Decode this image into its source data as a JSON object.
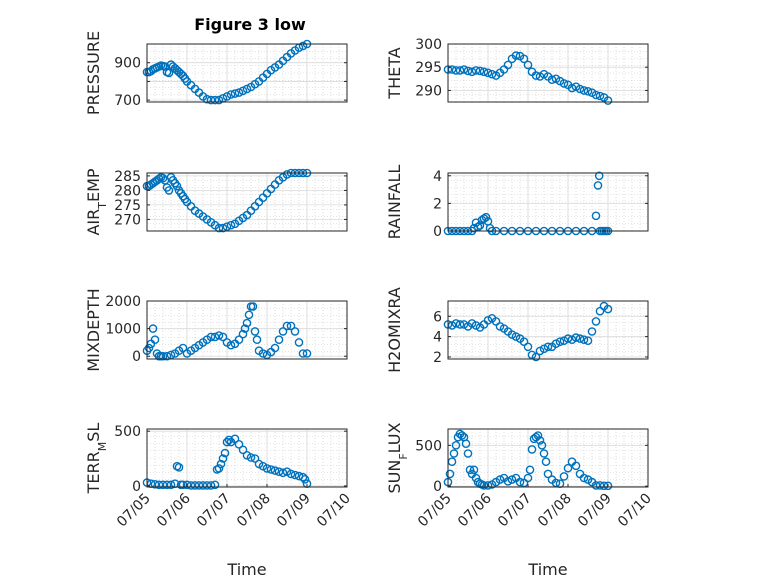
{
  "figure": {
    "title": "Figure 3 low"
  },
  "chart_data": [
    {
      "type": "scatter",
      "title": "Figure 3 low",
      "ylabel": "PRESSURE",
      "xlabel": "",
      "xlim": [
        0,
        5
      ],
      "ylim": [
        690,
        1000
      ],
      "xticks": [],
      "xtick_labels": [],
      "yticks": [
        700,
        800,
        900
      ],
      "ytick_labels": [
        "700",
        "",
        "900"
      ],
      "grid": true,
      "marker_color": "#0072BD",
      "x": [
        0.0,
        0.05,
        0.1,
        0.15,
        0.2,
        0.25,
        0.3,
        0.35,
        0.4,
        0.45,
        0.5,
        0.55,
        0.6,
        0.65,
        0.7,
        0.75,
        0.8,
        0.85,
        0.9,
        0.95,
        1.0,
        1.1,
        1.2,
        1.3,
        1.4,
        1.5,
        1.6,
        1.7,
        1.8,
        1.9,
        2.0,
        2.1,
        2.2,
        2.3,
        2.4,
        2.5,
        2.6,
        2.7,
        2.8,
        2.9,
        3.0,
        3.1,
        3.2,
        3.3,
        3.4,
        3.5,
        3.6,
        3.7,
        3.8,
        3.9,
        4.0
      ],
      "y": [
        850,
        850,
        855,
        865,
        870,
        875,
        880,
        885,
        882,
        880,
        850,
        845,
        890,
        880,
        870,
        860,
        850,
        840,
        830,
        815,
        800,
        780,
        760,
        740,
        720,
        705,
        700,
        700,
        700,
        710,
        720,
        730,
        735,
        740,
        750,
        760,
        770,
        785,
        800,
        820,
        840,
        860,
        875,
        890,
        910,
        930,
        950,
        965,
        980,
        990,
        1000
      ]
    },
    {
      "type": "scatter",
      "title": "",
      "ylabel": "THETA",
      "xlabel": "",
      "xlim": [
        0,
        5
      ],
      "ylim": [
        287.5,
        300
      ],
      "xticks": [],
      "xtick_labels": [],
      "yticks": [
        290,
        295,
        300
      ],
      "ytick_labels": [
        "290",
        "295",
        "300"
      ],
      "grid": true,
      "marker_color": "#0072BD",
      "x": [
        0.0,
        0.1,
        0.2,
        0.3,
        0.4,
        0.5,
        0.6,
        0.7,
        0.8,
        0.9,
        1.0,
        1.1,
        1.2,
        1.3,
        1.4,
        1.5,
        1.6,
        1.7,
        1.8,
        1.9,
        2.0,
        2.1,
        2.2,
        2.3,
        2.4,
        2.5,
        2.6,
        2.7,
        2.8,
        2.9,
        3.0,
        3.1,
        3.2,
        3.3,
        3.4,
        3.5,
        3.6,
        3.7,
        3.8,
        3.9,
        4.0
      ],
      "y": [
        294.5,
        294.5,
        294.3,
        294.3,
        294.5,
        294.2,
        294.0,
        294.3,
        294.2,
        294.0,
        293.8,
        293.5,
        293.2,
        293.8,
        294.5,
        295.5,
        296.8,
        297.5,
        297.4,
        296.8,
        295.5,
        294.0,
        293.2,
        293.0,
        293.5,
        293.0,
        292.3,
        292.5,
        292.0,
        291.5,
        291.2,
        290.5,
        290.8,
        290.3,
        290.0,
        289.8,
        289.5,
        289.0,
        288.8,
        288.5,
        287.8
      ]
    },
    {
      "type": "scatter",
      "title": "",
      "ylabel": "AIR_TEMP",
      "xlabel": "",
      "xlim": [
        0,
        5
      ],
      "ylim": [
        266,
        286
      ],
      "xticks": [],
      "xtick_labels": [],
      "yticks": [
        270,
        275,
        280,
        285
      ],
      "ytick_labels": [
        "270",
        "275",
        "280",
        "285"
      ],
      "grid": true,
      "marker_color": "#0072BD",
      "x": [
        0.0,
        0.05,
        0.1,
        0.15,
        0.2,
        0.25,
        0.3,
        0.35,
        0.4,
        0.45,
        0.5,
        0.55,
        0.6,
        0.65,
        0.7,
        0.75,
        0.8,
        0.85,
        0.9,
        0.95,
        1.0,
        1.1,
        1.2,
        1.3,
        1.4,
        1.5,
        1.6,
        1.7,
        1.8,
        1.9,
        2.0,
        2.1,
        2.2,
        2.3,
        2.4,
        2.5,
        2.6,
        2.7,
        2.8,
        2.9,
        3.0,
        3.1,
        3.2,
        3.3,
        3.4,
        3.5,
        3.6,
        3.7,
        3.8,
        3.9,
        4.0
      ],
      "y": [
        281.5,
        281.5,
        282,
        282.5,
        283,
        283.5,
        284,
        284.5,
        284.2,
        283.5,
        281,
        280,
        284.5,
        283.5,
        282.5,
        281.5,
        280,
        279,
        278,
        277,
        276,
        274.5,
        273,
        272,
        271,
        270,
        269,
        268,
        267,
        267,
        267.5,
        268,
        268.5,
        269.5,
        270.5,
        271.5,
        273,
        274.5,
        276,
        277.5,
        279,
        280.5,
        282,
        283.5,
        284.5,
        285.5,
        286,
        286,
        286,
        286,
        286
      ]
    },
    {
      "type": "scatter",
      "title": "",
      "ylabel": "RAINFALL",
      "xlabel": "",
      "xlim": [
        0,
        5
      ],
      "ylim": [
        0,
        4.2
      ],
      "xticks": [],
      "xtick_labels": [],
      "yticks": [
        0,
        2,
        4
      ],
      "ytick_labels": [
        "0",
        "2",
        "4"
      ],
      "grid": true,
      "marker_color": "#0072BD",
      "x": [
        0.0,
        0.1,
        0.2,
        0.3,
        0.4,
        0.5,
        0.6,
        0.65,
        0.7,
        0.75,
        0.8,
        0.85,
        0.9,
        0.95,
        1.0,
        1.05,
        1.1,
        1.2,
        1.4,
        1.6,
        1.8,
        2.0,
        2.2,
        2.4,
        2.6,
        2.8,
        3.0,
        3.2,
        3.4,
        3.6,
        3.7,
        3.75,
        3.78,
        3.8,
        3.85,
        3.9,
        3.95,
        4.0
      ],
      "y": [
        0,
        0,
        0,
        0,
        0,
        0,
        0,
        0.2,
        0.6,
        0.3,
        0.4,
        0.8,
        0.9,
        1.0,
        0.7,
        0.2,
        0,
        0,
        0,
        0,
        0,
        0,
        0,
        0,
        0,
        0,
        0,
        0,
        0,
        0,
        1.1,
        3.3,
        4.0,
        0,
        0,
        0,
        0,
        0
      ]
    },
    {
      "type": "scatter",
      "title": "",
      "ylabel": "MIXDEPTH",
      "xlabel": "",
      "xlim": [
        0,
        5
      ],
      "ylim": [
        -100,
        2000
      ],
      "xticks": [],
      "xtick_labels": [],
      "yticks": [
        0,
        1000,
        2000
      ],
      "ytick_labels": [
        "0",
        "1000",
        "2000"
      ],
      "grid": true,
      "marker_color": "#0072BD",
      "x": [
        0.0,
        0.05,
        0.1,
        0.15,
        0.2,
        0.25,
        0.3,
        0.35,
        0.4,
        0.5,
        0.6,
        0.7,
        0.8,
        0.9,
        1.0,
        1.1,
        1.2,
        1.3,
        1.4,
        1.5,
        1.6,
        1.7,
        1.8,
        1.9,
        2.0,
        2.1,
        2.2,
        2.3,
        2.4,
        2.45,
        2.5,
        2.55,
        2.6,
        2.65,
        2.7,
        2.75,
        2.8,
        2.9,
        3.0,
        3.1,
        3.2,
        3.3,
        3.4,
        3.5,
        3.6,
        3.7,
        3.8,
        3.9,
        4.0
      ],
      "y": [
        200,
        300,
        450,
        1000,
        600,
        100,
        0,
        0,
        0,
        0,
        50,
        100,
        200,
        300,
        100,
        200,
        300,
        400,
        500,
        600,
        700,
        700,
        750,
        700,
        500,
        400,
        450,
        600,
        800,
        1000,
        1200,
        1500,
        1800,
        1800,
        900,
        600,
        200,
        100,
        50,
        150,
        300,
        600,
        900,
        1100,
        1100,
        900,
        500,
        100,
        100
      ]
    },
    {
      "type": "scatter",
      "title": "",
      "ylabel": "H2OMIXRA",
      "xlabel": "",
      "xlim": [
        0,
        5
      ],
      "ylim": [
        1.8,
        7.5
      ],
      "xticks": [],
      "xtick_labels": [],
      "yticks": [
        2,
        4,
        6
      ],
      "ytick_labels": [
        "2",
        "4",
        "6"
      ],
      "grid": true,
      "marker_color": "#0072BD",
      "x": [
        0.0,
        0.1,
        0.2,
        0.3,
        0.4,
        0.5,
        0.6,
        0.7,
        0.8,
        0.9,
        1.0,
        1.1,
        1.2,
        1.3,
        1.4,
        1.5,
        1.6,
        1.7,
        1.8,
        1.9,
        2.0,
        2.1,
        2.2,
        2.3,
        2.4,
        2.5,
        2.6,
        2.7,
        2.8,
        2.9,
        3.0,
        3.1,
        3.2,
        3.3,
        3.4,
        3.5,
        3.6,
        3.7,
        3.8,
        3.9,
        4.0
      ],
      "y": [
        5.2,
        5.1,
        5.3,
        5.2,
        5.2,
        5.0,
        5.3,
        5.1,
        4.9,
        5.2,
        5.6,
        5.8,
        5.5,
        5.0,
        4.8,
        4.5,
        4.2,
        4.0,
        3.8,
        3.5,
        3.0,
        2.2,
        2.0,
        2.6,
        2.8,
        3.0,
        3.0,
        3.3,
        3.5,
        3.6,
        3.8,
        3.7,
        3.9,
        3.8,
        3.7,
        3.6,
        4.5,
        5.5,
        6.5,
        7.0,
        6.7
      ]
    },
    {
      "type": "scatter",
      "title": "",
      "ylabel": "TERR_MSL",
      "xlabel": "Time",
      "xlim": [
        0,
        5
      ],
      "ylim": [
        -10,
        520
      ],
      "xticks": [
        0,
        1,
        2,
        3,
        4,
        5
      ],
      "xtick_labels": [
        "07/05",
        "07/06",
        "07/07",
        "07/08",
        "07/09",
        "07/10"
      ],
      "yticks": [
        0,
        500
      ],
      "ytick_labels": [
        "0",
        "500"
      ],
      "grid": true,
      "marker_color": "#0072BD",
      "x": [
        0.0,
        0.1,
        0.2,
        0.3,
        0.4,
        0.5,
        0.6,
        0.7,
        0.75,
        0.8,
        0.85,
        0.9,
        1.0,
        1.1,
        1.2,
        1.3,
        1.4,
        1.5,
        1.6,
        1.7,
        1.75,
        1.8,
        1.85,
        1.9,
        1.95,
        2.0,
        2.05,
        2.1,
        2.2,
        2.3,
        2.4,
        2.5,
        2.6,
        2.7,
        2.8,
        2.9,
        3.0,
        3.1,
        3.2,
        3.3,
        3.4,
        3.5,
        3.6,
        3.7,
        3.8,
        3.9,
        3.95,
        4.0
      ],
      "y": [
        30,
        20,
        15,
        10,
        10,
        10,
        10,
        20,
        180,
        170,
        10,
        10,
        10,
        5,
        5,
        5,
        5,
        5,
        5,
        10,
        150,
        160,
        200,
        250,
        300,
        400,
        420,
        400,
        430,
        380,
        330,
        280,
        260,
        250,
        200,
        180,
        160,
        150,
        140,
        130,
        120,
        130,
        110,
        100,
        90,
        80,
        60,
        20
      ]
    },
    {
      "type": "scatter",
      "title": "",
      "ylabel": "SUN_FLUX",
      "xlabel": "Time",
      "xlim": [
        0,
        5
      ],
      "ylim": [
        -10,
        700
      ],
      "xticks": [
        0,
        1,
        2,
        3,
        4,
        5
      ],
      "xtick_labels": [
        "07/05",
        "07/06",
        "07/07",
        "07/08",
        "07/09",
        "07/10"
      ],
      "yticks": [
        0,
        500
      ],
      "ytick_labels": [
        "0",
        "500"
      ],
      "grid": true,
      "marker_color": "#0072BD",
      "x": [
        0.0,
        0.05,
        0.1,
        0.15,
        0.2,
        0.25,
        0.3,
        0.35,
        0.4,
        0.45,
        0.5,
        0.55,
        0.6,
        0.65,
        0.7,
        0.75,
        0.8,
        0.85,
        0.9,
        1.0,
        1.1,
        1.2,
        1.3,
        1.4,
        1.5,
        1.6,
        1.7,
        1.8,
        1.9,
        2.0,
        2.05,
        2.1,
        2.15,
        2.2,
        2.25,
        2.3,
        2.35,
        2.4,
        2.45,
        2.5,
        2.6,
        2.7,
        2.8,
        2.9,
        3.0,
        3.1,
        3.2,
        3.3,
        3.4,
        3.5,
        3.6,
        3.7,
        3.8,
        3.9,
        4.0
      ],
      "y": [
        50,
        150,
        300,
        400,
        500,
        600,
        640,
        620,
        600,
        520,
        400,
        200,
        150,
        200,
        100,
        50,
        30,
        20,
        10,
        10,
        20,
        50,
        80,
        100,
        60,
        80,
        100,
        50,
        40,
        100,
        200,
        450,
        580,
        600,
        620,
        560,
        500,
        400,
        300,
        150,
        80,
        40,
        30,
        120,
        220,
        300,
        250,
        150,
        100,
        80,
        50,
        10,
        10,
        5,
        5
      ]
    }
  ]
}
